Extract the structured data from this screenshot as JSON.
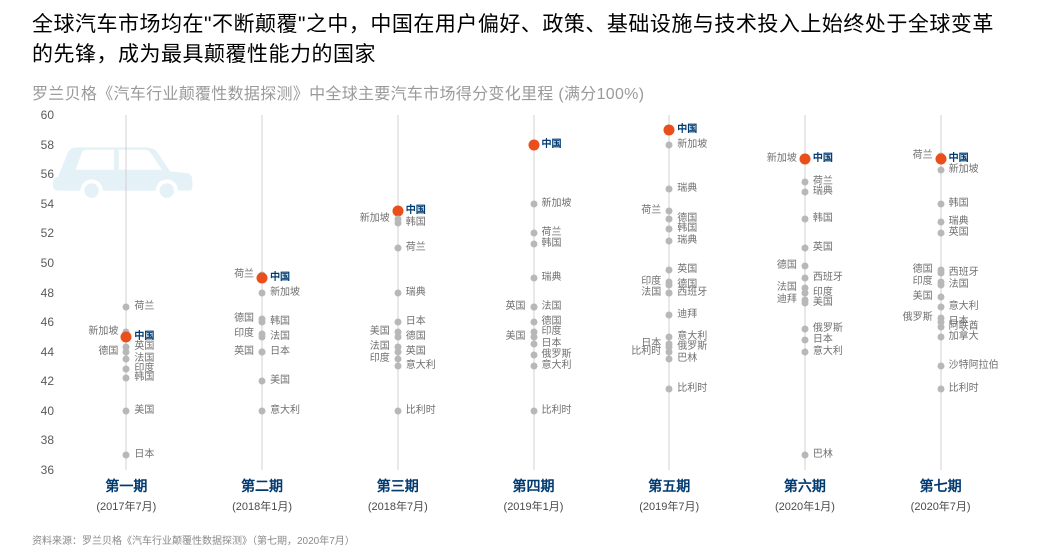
{
  "title": "全球汽车市场均在\"不断颠覆\"之中，中国在用户偏好、政策、基础设施与技术投入上始终处于全球变革的先锋，成为最具颠覆性能力的国家",
  "subtitle": "罗兰贝格《汽车行业颠覆性数据探测》中全球主要汽车市场得分变化里程 (满分100%)",
  "source": "资料来源：罗兰贝格《汽车行业颠覆性数据探测》（第七期，2020年7月）",
  "chart": {
    "ylim": [
      36,
      60
    ],
    "ytick_step": 2,
    "y_font_size": 12,
    "y_color": "#5a5a5a",
    "axis_line_color": "#d0d0d0",
    "car_watermark_color": "#cfe6f2",
    "highlight_label": "中国",
    "highlight_color": "#e94e1b",
    "highlight_label_color": "#003a70",
    "highlight_radius": 5.5,
    "normal_color": "#b8b8b8",
    "normal_label_color": "#707070",
    "normal_radius": 3.5,
    "point_label_fontsize": 10,
    "x_label_period_color": "#003a70",
    "x_label_period_fontsize": 14,
    "x_label_date_color": "#4a4a4a",
    "columns": [
      {
        "period": "第一期",
        "date": "(2017年7月)",
        "points": [
          {
            "label": "荷兰",
            "value": 47.0,
            "side": "right"
          },
          {
            "label": "新加坡",
            "value": 45.3,
            "side": "left"
          },
          {
            "label": "中国",
            "value": 45.0,
            "side": "right",
            "highlight": true
          },
          {
            "label": "英国",
            "value": 44.3,
            "side": "right"
          },
          {
            "label": "德国",
            "value": 44.0,
            "side": "left"
          },
          {
            "label": "法国",
            "value": 43.5,
            "side": "right"
          },
          {
            "label": "印度",
            "value": 42.8,
            "side": "right"
          },
          {
            "label": "韩国",
            "value": 42.2,
            "side": "right"
          },
          {
            "label": "美国",
            "value": 40.0,
            "side": "right"
          },
          {
            "label": "日本",
            "value": 37.0,
            "side": "right"
          }
        ]
      },
      {
        "period": "第二期",
        "date": "(2018年1月)",
        "points": [
          {
            "label": "荷兰",
            "value": 49.2,
            "side": "left"
          },
          {
            "label": "中国",
            "value": 49.0,
            "side": "right",
            "highlight": true
          },
          {
            "label": "新加坡",
            "value": 48.0,
            "side": "right"
          },
          {
            "label": "德国",
            "value": 46.2,
            "side": "left"
          },
          {
            "label": "韩国",
            "value": 46.0,
            "side": "right"
          },
          {
            "label": "印度",
            "value": 45.2,
            "side": "left"
          },
          {
            "label": "法国",
            "value": 45.0,
            "side": "right"
          },
          {
            "label": "英国",
            "value": 44.0,
            "side": "left"
          },
          {
            "label": "日本",
            "value": 44.0,
            "side": "right"
          },
          {
            "label": "美国",
            "value": 42.0,
            "side": "right"
          },
          {
            "label": "意大利",
            "value": 40.0,
            "side": "right"
          }
        ]
      },
      {
        "period": "第三期",
        "date": "(2018年7月)",
        "points": [
          {
            "label": "中国",
            "value": 53.5,
            "side": "right",
            "highlight": true
          },
          {
            "label": "新加坡",
            "value": 53.0,
            "side": "left"
          },
          {
            "label": "韩国",
            "value": 52.7,
            "side": "right"
          },
          {
            "label": "荷兰",
            "value": 51.0,
            "side": "right"
          },
          {
            "label": "瑞典",
            "value": 48.0,
            "side": "right"
          },
          {
            "label": "日本",
            "value": 46.0,
            "side": "right"
          },
          {
            "label": "美国",
            "value": 45.3,
            "side": "left"
          },
          {
            "label": "德国",
            "value": 45.0,
            "side": "right"
          },
          {
            "label": "法国",
            "value": 44.3,
            "side": "left"
          },
          {
            "label": "英国",
            "value": 44.0,
            "side": "right"
          },
          {
            "label": "印度",
            "value": 43.5,
            "side": "left"
          },
          {
            "label": "意大利",
            "value": 43.0,
            "side": "right"
          },
          {
            "label": "比利时",
            "value": 40.0,
            "side": "right"
          }
        ]
      },
      {
        "period": "第四期",
        "date": "(2019年1月)",
        "points": [
          {
            "label": "中国",
            "value": 58.0,
            "side": "right",
            "highlight": true
          },
          {
            "label": "新加坡",
            "value": 54.0,
            "side": "right"
          },
          {
            "label": "荷兰",
            "value": 52.0,
            "side": "right"
          },
          {
            "label": "韩国",
            "value": 51.3,
            "side": "right"
          },
          {
            "label": "瑞典",
            "value": 49.0,
            "side": "right"
          },
          {
            "label": "英国",
            "value": 47.0,
            "side": "left"
          },
          {
            "label": "法国",
            "value": 47.0,
            "side": "right"
          },
          {
            "label": "德国",
            "value": 46.0,
            "side": "right"
          },
          {
            "label": "印度",
            "value": 45.3,
            "side": "right"
          },
          {
            "label": "美国",
            "value": 45.0,
            "side": "left"
          },
          {
            "label": "日本",
            "value": 44.5,
            "side": "right"
          },
          {
            "label": "俄罗斯",
            "value": 43.8,
            "side": "right"
          },
          {
            "label": "意大利",
            "value": 43.0,
            "side": "right"
          },
          {
            "label": "比利时",
            "value": 40.0,
            "side": "right"
          }
        ]
      },
      {
        "period": "第五期",
        "date": "(2019年7月)",
        "points": [
          {
            "label": "中国",
            "value": 59.0,
            "side": "right",
            "highlight": true
          },
          {
            "label": "新加坡",
            "value": 58.0,
            "side": "right"
          },
          {
            "label": "瑞典",
            "value": 55.0,
            "side": "right"
          },
          {
            "label": "荷兰",
            "value": 53.5,
            "side": "left"
          },
          {
            "label": "德国",
            "value": 53.0,
            "side": "right"
          },
          {
            "label": "韩国",
            "value": 52.3,
            "side": "right"
          },
          {
            "label": "瑞典",
            "value": 51.5,
            "side": "right"
          },
          {
            "label": "英国",
            "value": 49.5,
            "side": "right"
          },
          {
            "label": "印度",
            "value": 48.7,
            "side": "left"
          },
          {
            "label": "德国",
            "value": 48.5,
            "side": "right"
          },
          {
            "label": "法国",
            "value": 48.0,
            "side": "left"
          },
          {
            "label": "西班牙",
            "value": 48.0,
            "side": "right"
          },
          {
            "label": "迪拜",
            "value": 46.5,
            "side": "right"
          },
          {
            "label": "意大利",
            "value": 45.0,
            "side": "right"
          },
          {
            "label": "日本",
            "value": 44.5,
            "side": "left"
          },
          {
            "label": "俄罗斯",
            "value": 44.3,
            "side": "right"
          },
          {
            "label": "比利时",
            "value": 44.0,
            "side": "left"
          },
          {
            "label": "巴林",
            "value": 43.5,
            "side": "right"
          },
          {
            "label": "比利时",
            "value": 41.5,
            "side": "right"
          }
        ]
      },
      {
        "period": "第六期",
        "date": "(2020年1月)",
        "points": [
          {
            "label": "新加坡",
            "value": 57.0,
            "side": "left"
          },
          {
            "label": "中国",
            "value": 57.0,
            "side": "right",
            "highlight": true
          },
          {
            "label": "荷兰",
            "value": 55.5,
            "side": "right"
          },
          {
            "label": "瑞典",
            "value": 54.8,
            "side": "right"
          },
          {
            "label": "韩国",
            "value": 53.0,
            "side": "right"
          },
          {
            "label": "英国",
            "value": 51.0,
            "side": "right"
          },
          {
            "label": "德国",
            "value": 49.8,
            "side": "left"
          },
          {
            "label": "西班牙",
            "value": 49.0,
            "side": "right"
          },
          {
            "label": "法国",
            "value": 48.3,
            "side": "left"
          },
          {
            "label": "印度",
            "value": 48.0,
            "side": "right"
          },
          {
            "label": "迪拜",
            "value": 47.5,
            "side": "left"
          },
          {
            "label": "美国",
            "value": 47.3,
            "side": "right"
          },
          {
            "label": "俄罗斯",
            "value": 45.5,
            "side": "right"
          },
          {
            "label": "日本",
            "value": 44.8,
            "side": "right"
          },
          {
            "label": "意大利",
            "value": 44.0,
            "side": "right"
          },
          {
            "label": "巴林",
            "value": 37.0,
            "side": "right"
          }
        ]
      },
      {
        "period": "第七期",
        "date": "(2020年7月)",
        "points": [
          {
            "label": "荷兰",
            "value": 57.2,
            "side": "left"
          },
          {
            "label": "中国",
            "value": 57.0,
            "side": "right",
            "highlight": true
          },
          {
            "label": "新加坡",
            "value": 56.3,
            "side": "right"
          },
          {
            "label": "韩国",
            "value": 54.0,
            "side": "right"
          },
          {
            "label": "瑞典",
            "value": 52.8,
            "side": "right"
          },
          {
            "label": "英国",
            "value": 52.0,
            "side": "right"
          },
          {
            "label": "德国",
            "value": 49.5,
            "side": "left"
          },
          {
            "label": "西班牙",
            "value": 49.3,
            "side": "right"
          },
          {
            "label": "印度",
            "value": 48.7,
            "side": "left"
          },
          {
            "label": "法国",
            "value": 48.5,
            "side": "right"
          },
          {
            "label": "美国",
            "value": 47.7,
            "side": "left"
          },
          {
            "label": "意大利",
            "value": 47.0,
            "side": "right"
          },
          {
            "label": "俄罗斯",
            "value": 46.3,
            "side": "left"
          },
          {
            "label": "日本",
            "value": 46.0,
            "side": "right"
          },
          {
            "label": "阿联酋",
            "value": 45.7,
            "side": "right"
          },
          {
            "label": "加拿大",
            "value": 45.0,
            "side": "right"
          },
          {
            "label": "沙特阿拉伯",
            "value": 43.0,
            "side": "right"
          },
          {
            "label": "比利时",
            "value": 41.5,
            "side": "right"
          }
        ]
      }
    ]
  }
}
